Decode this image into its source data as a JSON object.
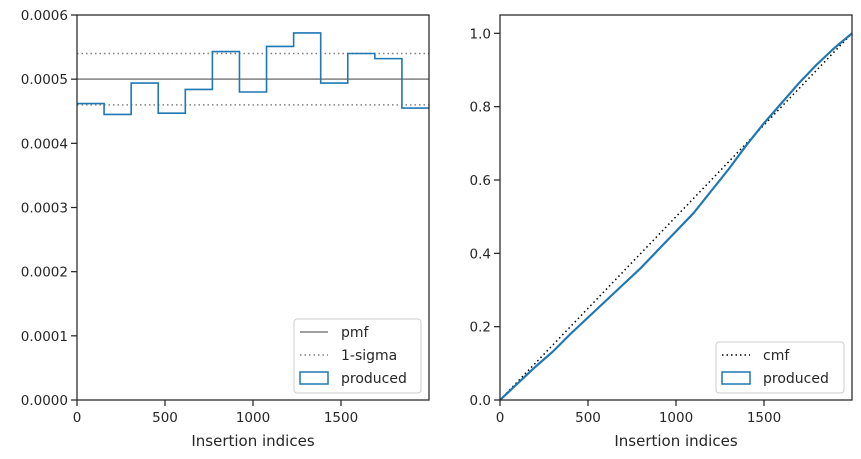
{
  "chart_data": [
    {
      "type": "line",
      "xlabel": "Insertion indices",
      "ylabel": "",
      "xlim": [
        0,
        2000
      ],
      "ylim": [
        0,
        0.0006
      ],
      "xticks": [
        0,
        500,
        1000,
        1500
      ],
      "xtick_labels": [
        "0",
        "500",
        "1000",
        "1500"
      ],
      "yticks": [
        0,
        0.0001,
        0.0002,
        0.0003,
        0.0004,
        0.0005,
        0.0006
      ],
      "ytick_labels": [
        "0.0000",
        "0.0001",
        "0.0002",
        "0.0003",
        "0.0004",
        "0.0005",
        "0.0006"
      ],
      "grid": false,
      "legend_position": "bottom-right",
      "series": [
        {
          "name": "pmf",
          "kind": "hline",
          "y": 0.0005,
          "color": "#808080",
          "style": "solid"
        },
        {
          "name": "1-sigma",
          "kind": "hlines",
          "y": [
            0.00054,
            0.00046
          ],
          "color": "#808080",
          "style": "dotted"
        },
        {
          "name": "produced",
          "kind": "step",
          "color": "#1f77b4",
          "bin_edges": [
            0,
            153.8,
            307.7,
            461.5,
            615.4,
            769.2,
            923.1,
            1076.9,
            1230.8,
            1384.6,
            1538.5,
            1692.3,
            1846.2,
            2000
          ],
          "values": [
            0.000462,
            0.000445,
            0.000494,
            0.000447,
            0.000484,
            0.000543,
            0.00048,
            0.000551,
            0.000572,
            0.000494,
            0.00054,
            0.000532,
            0.000455
          ]
        }
      ]
    },
    {
      "type": "line",
      "xlabel": "Insertion indices",
      "ylabel": "",
      "xlim": [
        0,
        2000
      ],
      "ylim": [
        0,
        1.05
      ],
      "xticks": [
        0,
        500,
        1000,
        1500
      ],
      "xtick_labels": [
        "0",
        "500",
        "1000",
        "1500"
      ],
      "yticks": [
        0,
        0.2,
        0.4,
        0.6,
        0.8,
        1.0
      ],
      "ytick_labels": [
        "0.0",
        "0.2",
        "0.4",
        "0.6",
        "0.8",
        "1.0"
      ],
      "grid": false,
      "legend_position": "bottom-right",
      "series": [
        {
          "name": "cmf",
          "kind": "line",
          "x": [
            0,
            2000
          ],
          "y": [
            0,
            1.0
          ],
          "color": "#000000",
          "style": "dotted"
        },
        {
          "name": "produced",
          "kind": "line",
          "color": "#1f77b4",
          "x": [
            0,
            100,
            200,
            300,
            400,
            500,
            600,
            700,
            800,
            900,
            1000,
            1100,
            1200,
            1300,
            1400,
            1500,
            1600,
            1700,
            1800,
            1900,
            2000
          ],
          "y": [
            0,
            0.045,
            0.09,
            0.132,
            0.18,
            0.225,
            0.27,
            0.315,
            0.36,
            0.41,
            0.46,
            0.51,
            0.57,
            0.63,
            0.695,
            0.755,
            0.81,
            0.865,
            0.915,
            0.96,
            1.0
          ]
        }
      ]
    }
  ]
}
